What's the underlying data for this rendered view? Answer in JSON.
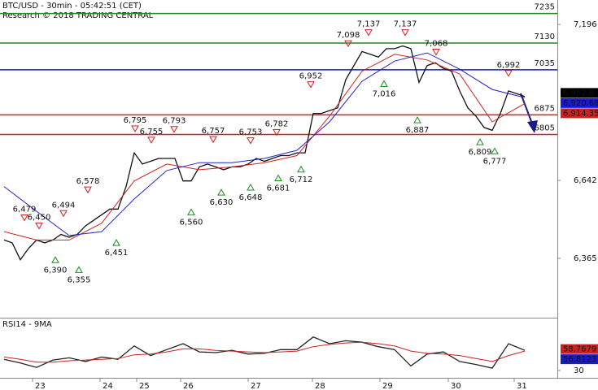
{
  "chart_data": [
    {
      "type": "line",
      "title": "BTC/USD - 30min - 05:42:51 (CET)",
      "subtitle": "Research © 2018 TRADING CENTRAL",
      "xlim": [
        -0.5,
        68
      ],
      "ylim": [
        6157,
        7283
      ],
      "yticks": [
        {
          "value": 7196,
          "label": "7,196"
        },
        {
          "value": 6642,
          "label": "6,642"
        },
        {
          "value": 6365,
          "label": "6,365"
        }
      ],
      "series": [
        {
          "color": "#111111",
          "x": [
            0,
            1,
            2,
            3,
            4,
            5,
            6,
            7,
            8,
            9,
            10,
            11,
            12,
            13,
            14,
            15,
            16,
            17,
            18,
            19,
            20,
            21,
            22,
            23,
            24,
            25,
            26,
            27,
            28,
            29,
            30,
            31,
            32,
            33,
            34,
            35,
            36,
            37,
            38,
            39,
            40,
            41,
            42,
            43,
            44,
            45,
            46,
            47,
            48,
            49,
            50,
            51,
            52,
            53,
            54,
            55,
            56,
            57,
            58,
            59,
            60,
            61,
            62,
            63,
            64
          ],
          "values": [
            6430,
            6420,
            6360,
            6400,
            6430,
            6420,
            6430,
            6450,
            6440,
            6450,
            6480,
            6500,
            6520,
            6540,
            6540,
            6620,
            6740,
            6700,
            6710,
            6720,
            6720,
            6720,
            6640,
            6640,
            6690,
            6700,
            6690,
            6680,
            6690,
            6690,
            6700,
            6720,
            6710,
            6720,
            6730,
            6730,
            6740,
            6740,
            6880,
            6880,
            6890,
            6900,
            7000,
            7050,
            7100,
            7090,
            7080,
            7110,
            7110,
            7120,
            7110,
            6990,
            7050,
            7060,
            7040,
            7030,
            6960,
            6900,
            6870,
            6830,
            6820,
            6880,
            6960,
            6950,
            6940
          ]
        },
        {
          "color": "#cc2222",
          "x": [
            0,
            4,
            8,
            12,
            16,
            20,
            24,
            28,
            32,
            36,
            40,
            44,
            48,
            52,
            56,
            60,
            64
          ],
          "values": [
            6460,
            6430,
            6430,
            6490,
            6640,
            6700,
            6680,
            6690,
            6705,
            6730,
            6870,
            7030,
            7090,
            7070,
            7020,
            6850,
            6915
          ]
        },
        {
          "color": "#2222cc",
          "x": [
            0,
            4,
            8,
            12,
            16,
            20,
            24,
            28,
            32,
            36,
            40,
            44,
            48,
            52,
            56,
            60,
            64
          ],
          "values": [
            6620,
            6532,
            6446,
            6460,
            6576,
            6677,
            6705,
            6705,
            6720,
            6749,
            6850,
            6994,
            7066,
            7095,
            7037,
            6965,
            6936
          ]
        }
      ],
      "levels": [
        {
          "value": 7235,
          "color": "#1f8a1f"
        },
        {
          "value": 7130,
          "color": "#1f8a1f"
        },
        {
          "value": 7035,
          "color": "#1a1acc"
        },
        {
          "value": 6875,
          "color": "#cc2222"
        },
        {
          "value": 6805,
          "color": "#cc2222"
        }
      ],
      "annotations": [
        {
          "x": 2.5,
          "value": 6479,
          "label": "6,479",
          "dir": "down"
        },
        {
          "x": 4.3,
          "value": 6450,
          "label": "6,450",
          "dir": "down"
        },
        {
          "x": 7.3,
          "value": 6494,
          "label": "6,494",
          "dir": "down"
        },
        {
          "x": 10.3,
          "value": 6578,
          "label": "6,578",
          "dir": "down"
        },
        {
          "x": 16.1,
          "value": 6795,
          "label": "6,795",
          "dir": "down"
        },
        {
          "x": 18.1,
          "value": 6755,
          "label": "6,755",
          "dir": "down"
        },
        {
          "x": 20.9,
          "value": 6793,
          "label": "6,793",
          "dir": "down"
        },
        {
          "x": 25.7,
          "value": 6757,
          "label": "6,757",
          "dir": "down"
        },
        {
          "x": 30.3,
          "value": 6753,
          "label": "6,753",
          "dir": "down"
        },
        {
          "x": 33.5,
          "value": 6782,
          "label": "6,782",
          "dir": "down"
        },
        {
          "x": 37.7,
          "value": 6952,
          "label": "6,952",
          "dir": "down"
        },
        {
          "x": 42.3,
          "value": 7098,
          "label": "7,098",
          "dir": "down"
        },
        {
          "x": 44.8,
          "value": 7137,
          "label": "7,137",
          "dir": "down"
        },
        {
          "x": 49.3,
          "value": 7137,
          "label": "7,137",
          "dir": "down"
        },
        {
          "x": 53.1,
          "value": 7068,
          "label": "7,068",
          "dir": "down"
        },
        {
          "x": 62,
          "value": 6992,
          "label": "6,992",
          "dir": "down"
        },
        {
          "x": 6.3,
          "value": 6390,
          "label": "6,390",
          "dir": "up"
        },
        {
          "x": 9.2,
          "value": 6355,
          "label": "6,355",
          "dir": "up"
        },
        {
          "x": 13.8,
          "value": 6451,
          "label": "6,451",
          "dir": "up"
        },
        {
          "x": 23,
          "value": 6560,
          "label": "6,560",
          "dir": "up"
        },
        {
          "x": 26.7,
          "value": 6630,
          "label": "6,630",
          "dir": "up"
        },
        {
          "x": 30.3,
          "value": 6648,
          "label": "6,648",
          "dir": "up"
        },
        {
          "x": 33.7,
          "value": 6681,
          "label": "6,681",
          "dir": "up"
        },
        {
          "x": 36.5,
          "value": 6712,
          "label": "6,712",
          "dir": "up"
        },
        {
          "x": 46.7,
          "value": 7016,
          "label": "7,016",
          "dir": "up"
        },
        {
          "x": 50.8,
          "value": 6887,
          "label": "6,887",
          "dir": "up"
        },
        {
          "x": 58.5,
          "value": 6809,
          "label": "6,809",
          "dir": "up"
        },
        {
          "x": 60.3,
          "value": 6777,
          "label": "6,777",
          "dir": "up"
        }
      ],
      "last_values": [
        {
          "value": 6952.8,
          "label": "6,952.8",
          "color": "#000000"
        },
        {
          "value": 6920.68,
          "label": "6,920.68",
          "color": "#1a1acc"
        },
        {
          "value": 6914.35,
          "label": "6,914.35",
          "color": "#cc2222"
        }
      ]
    },
    {
      "type": "line",
      "title": "RSI14 - 9MA",
      "xlim": [
        -0.5,
        68
      ],
      "ylim": [
        20,
        100
      ],
      "yticks": [
        30
      ],
      "xticks": [
        {
          "value": 3.5,
          "label": "23"
        },
        {
          "value": 11.8,
          "label": "24"
        },
        {
          "value": 16.3,
          "label": "25"
        },
        {
          "value": 21.7,
          "label": "26"
        },
        {
          "value": 30,
          "label": "27"
        },
        {
          "value": 37.9,
          "label": "28"
        },
        {
          "value": 46.2,
          "label": "29"
        },
        {
          "value": 54.6,
          "label": "30"
        },
        {
          "value": 62.7,
          "label": "31"
        }
      ],
      "series": [
        {
          "color": "#222222",
          "x": [
            0,
            2,
            4,
            6,
            8,
            10,
            12,
            14,
            16,
            18,
            20,
            22,
            24,
            26,
            28,
            30,
            32,
            34,
            36,
            38,
            40,
            42,
            44,
            46,
            48,
            50,
            52,
            54,
            56,
            58,
            60,
            62,
            64
          ],
          "values": [
            45,
            40,
            34,
            44,
            47,
            42,
            48,
            45,
            63,
            50,
            58,
            66,
            55,
            54,
            57,
            52,
            53,
            58,
            58,
            75,
            66,
            70,
            68,
            62,
            58,
            36,
            52,
            55,
            42,
            38,
            33,
            66,
            57
          ]
        },
        {
          "color": "#cc2222",
          "x": [
            0,
            2,
            4,
            6,
            8,
            10,
            12,
            14,
            16,
            18,
            20,
            22,
            24,
            26,
            28,
            30,
            32,
            34,
            36,
            38,
            40,
            42,
            44,
            46,
            48,
            50,
            52,
            54,
            56,
            58,
            60,
            62,
            64
          ],
          "values": [
            48,
            45,
            41,
            41,
            43,
            44,
            45,
            46,
            51,
            52,
            55,
            59,
            59,
            57,
            56,
            55,
            54,
            55,
            56,
            62,
            65,
            67,
            68,
            66,
            63,
            56,
            53,
            52,
            50,
            46,
            42,
            50,
            56
          ]
        }
      ],
      "last_values": [
        {
          "value": 58.7679,
          "label": "58.7679",
          "color": "#cc2222"
        },
        {
          "value": 56.8123,
          "label": "56.8123",
          "color": "#1a1acc"
        }
      ]
    }
  ]
}
